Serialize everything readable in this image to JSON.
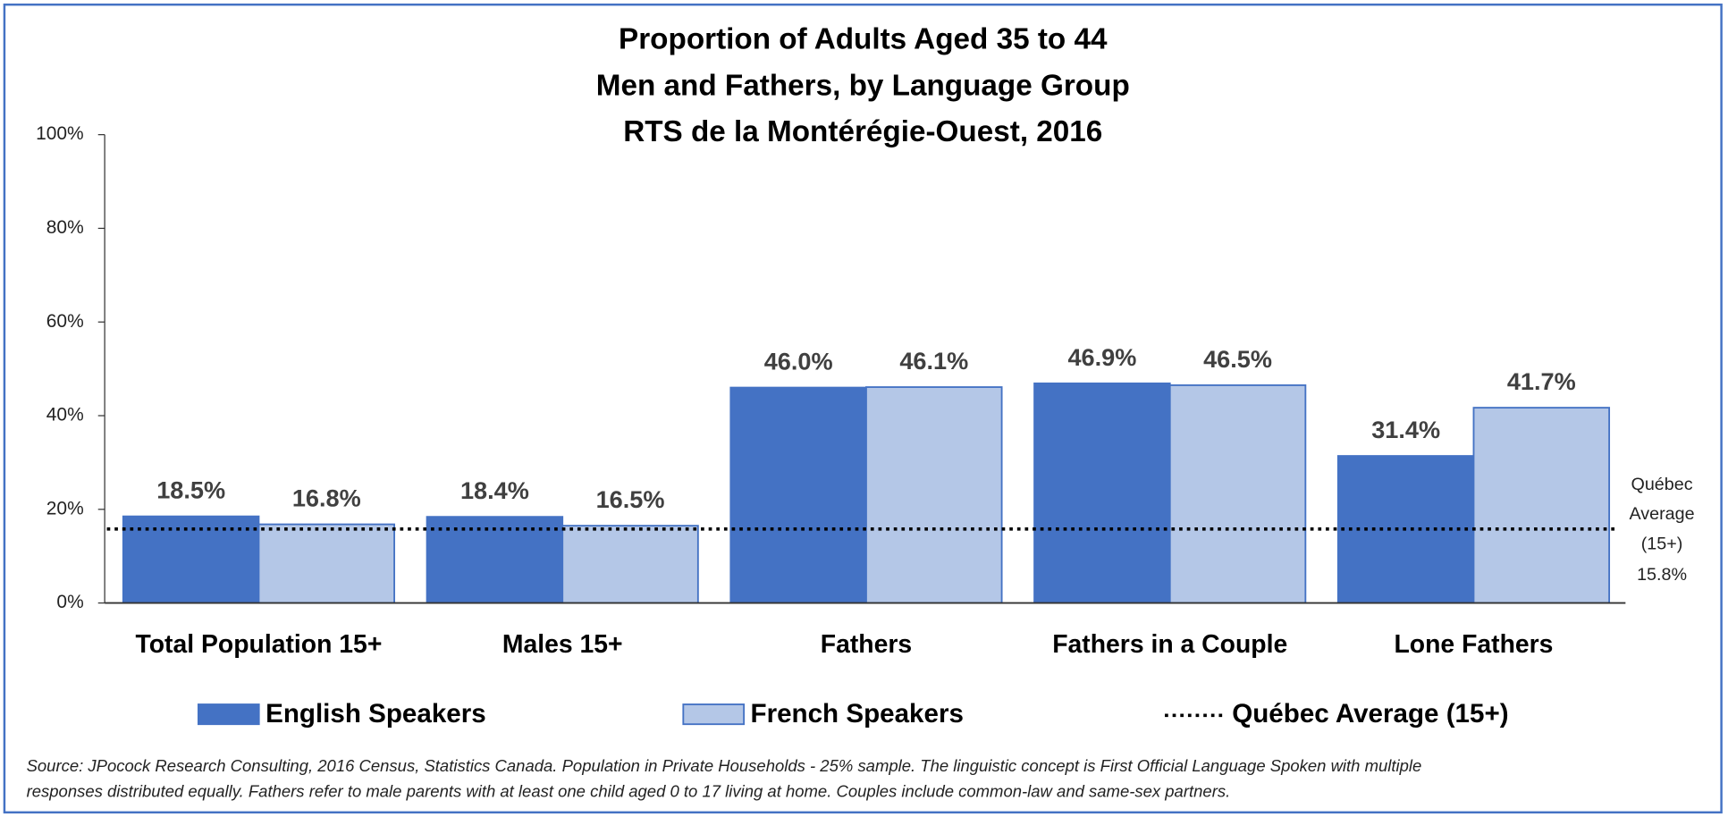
{
  "chart_data": {
    "type": "bar",
    "title": [
      "Proportion of Adults Aged 35 to 44",
      "Men and Fathers, by Language Group",
      "RTS de la Montérégie-Ouest, 2016"
    ],
    "categories": [
      "Total Population 15+",
      "Males 15+",
      "Fathers",
      "Fathers in a Couple",
      "Lone Fathers"
    ],
    "series": [
      {
        "name": "English Speakers",
        "color": "#4472c4",
        "values": [
          18.5,
          18.4,
          46.0,
          46.9,
          31.4
        ],
        "value_labels": [
          "18.5%",
          "18.4%",
          "46.0%",
          "46.9%",
          "31.4%"
        ]
      },
      {
        "name": "French Speakers",
        "color": "#b4c7e7",
        "values": [
          16.8,
          16.5,
          46.1,
          46.5,
          41.7
        ],
        "value_labels": [
          "16.8%",
          "16.5%",
          "46.1%",
          "46.5%",
          "41.7%"
        ]
      }
    ],
    "reference_line": {
      "name": "Québec Average (15+)",
      "value": 15.8,
      "value_label": "15.8%",
      "annotation": [
        "Québec",
        "Average",
        "(15+)"
      ],
      "color": "#000000"
    },
    "ylim": [
      0,
      100
    ],
    "yticks": [
      {
        "value": 0,
        "label": "0%"
      },
      {
        "value": 20,
        "label": "20%"
      },
      {
        "value": 40,
        "label": "40%"
      },
      {
        "value": 60,
        "label": "60%"
      },
      {
        "value": 80,
        "label": "80%"
      },
      {
        "value": 100,
        "label": "100%"
      }
    ],
    "legend": "bottom",
    "source": [
      "Source: JPocock Research Consulting, 2016 Census, Statistics Canada. Population in Private Households - 25% sample. The linguistic concept is First Official Language Spoken with multiple",
      "responses distributed equally. Fathers refer to male parents with at least one child aged 0 to 17 living at home. Couples include common-law and same-sex partners."
    ]
  }
}
